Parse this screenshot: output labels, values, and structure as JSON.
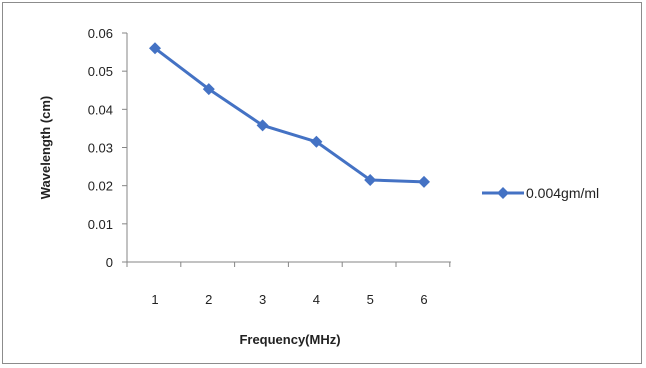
{
  "chart_data": {
    "type": "line",
    "x": [
      1,
      2,
      3,
      4,
      5,
      6
    ],
    "series": [
      {
        "name": "0.004gm/ml",
        "values": [
          0.056,
          0.0453,
          0.0358,
          0.0315,
          0.0215,
          0.021
        ],
        "color": "#4472C4",
        "marker": "diamond"
      }
    ],
    "xlabel": "Frequency(MHz)",
    "ylabel": "Wavelength (cm)",
    "xticks": [
      "1",
      "2",
      "3",
      "4",
      "5",
      "6"
    ],
    "yticks": [
      "0",
      "0.01",
      "0.02",
      "0.03",
      "0.04",
      "0.05",
      "0.06"
    ],
    "ylim": [
      0,
      0.06
    ],
    "grid": false,
    "legend_position": "right"
  }
}
